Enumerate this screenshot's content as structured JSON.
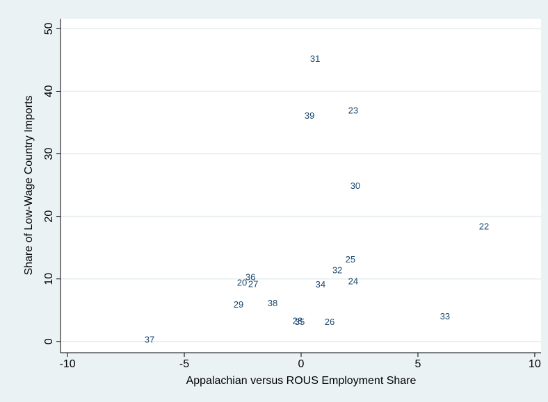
{
  "chart_data": {
    "type": "scatter",
    "x_label": "Appalachian versus ROUS Employment Share",
    "y_label": "Share of Low-Wage Country Imports",
    "point_labels": [
      "31",
      "23",
      "39",
      "30",
      "22",
      "25",
      "32",
      "36",
      "20",
      "27",
      "34",
      "24",
      "38",
      "29",
      "28",
      "35",
      "26",
      "33",
      "37"
    ],
    "x": [
      0.6,
      2.23,
      0.36,
      2.32,
      7.83,
      2.11,
      1.55,
      -2.17,
      -2.53,
      -2.05,
      0.83,
      2.23,
      -1.22,
      -2.68,
      -0.15,
      -0.06,
      1.22,
      6.16,
      -6.49
    ],
    "values": [
      45.1,
      36.8,
      36.0,
      24.8,
      18.3,
      13.0,
      11.3,
      10.2,
      9.3,
      9.1,
      9.0,
      9.5,
      6.0,
      5.8,
      3.2,
      3.0,
      3.0,
      3.9,
      0.2
    ],
    "color": "#1a476f",
    "grid_color": "#e4eced",
    "xlim": [
      -10.3,
      10.27
    ],
    "ylim": [
      -1.8,
      51.6
    ],
    "xticks": [
      -10,
      -5,
      0,
      5,
      10
    ],
    "yticks": [
      0,
      10,
      20,
      30,
      40,
      50
    ],
    "grid": true
  }
}
